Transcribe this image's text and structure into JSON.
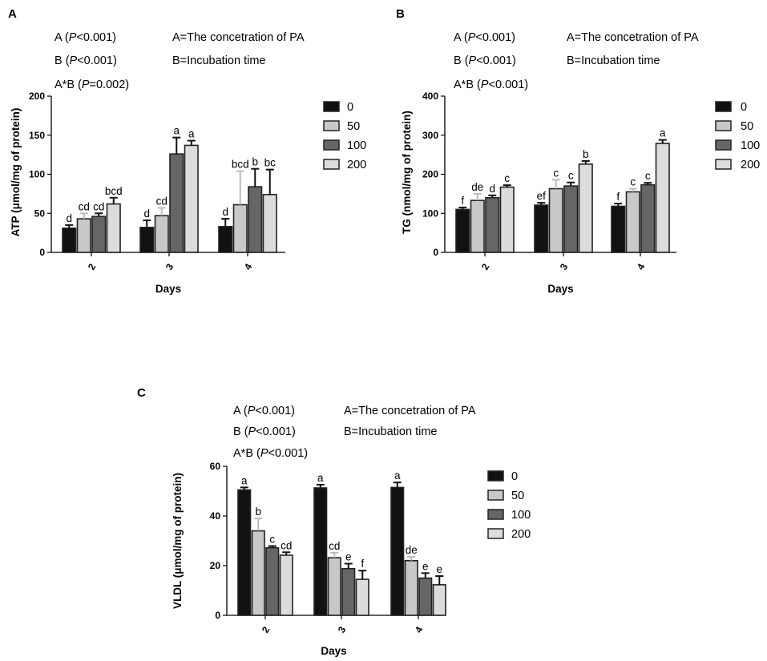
{
  "chart_data": [
    {
      "panel": "A",
      "type": "bar",
      "stats": [
        "A (P<0.001)",
        "B (P<0.001)",
        "A*B (P=0.002)"
      ],
      "definitions": [
        "A=The concetration of PA",
        "B=Incubation time"
      ],
      "xlabel": "Days",
      "ylabel": "ATP (μmol/mg of protein)",
      "ylim": [
        0,
        200
      ],
      "yticks": [
        0,
        50,
        100,
        150,
        200
      ],
      "categories": [
        "2",
        "3",
        "4"
      ],
      "series": [
        {
          "name": "0",
          "values": [
            31,
            32,
            33
          ],
          "errors": [
            4,
            9,
            10
          ],
          "labels": [
            "d",
            "d",
            "d"
          ]
        },
        {
          "name": "50",
          "values": [
            43,
            47,
            61
          ],
          "errors": [
            7,
            10,
            43
          ],
          "labels": [
            "cd",
            "cd",
            "bcd"
          ]
        },
        {
          "name": "100",
          "values": [
            46,
            126,
            84
          ],
          "errors": [
            4,
            21,
            23
          ],
          "labels": [
            "cd",
            "a",
            "b"
          ]
        },
        {
          "name": "200",
          "values": [
            62,
            137,
            74
          ],
          "errors": [
            8,
            6,
            32
          ],
          "labels": [
            "bcd",
            "a",
            "bc"
          ]
        }
      ],
      "legend": [
        "0",
        "50",
        "100",
        "200"
      ]
    },
    {
      "panel": "B",
      "type": "bar",
      "stats": [
        "A (P<0.001)",
        "B (P<0.001)",
        "A*B (P<0.001)"
      ],
      "definitions": [
        "A=The concetration of PA",
        "B=Incubation time"
      ],
      "xlabel": "Days",
      "ylabel": "TG (nmol/mg of protein)",
      "ylim": [
        0,
        400
      ],
      "yticks": [
        0,
        100,
        200,
        300,
        400
      ],
      "categories": [
        "2",
        "3",
        "4"
      ],
      "series": [
        {
          "name": "0",
          "values": [
            110,
            121,
            118
          ],
          "errors": [
            5,
            6,
            7
          ],
          "labels": [
            "f",
            "ef",
            "f"
          ]
        },
        {
          "name": "50",
          "values": [
            133,
            163,
            155
          ],
          "errors": [
            17,
            23,
            8
          ],
          "labels": [
            "de",
            "c",
            "c"
          ]
        },
        {
          "name": "100",
          "values": [
            140,
            170,
            173
          ],
          "errors": [
            6,
            9,
            5
          ],
          "labels": [
            "d",
            "c",
            "c"
          ]
        },
        {
          "name": "200",
          "values": [
            167,
            226,
            279
          ],
          "errors": [
            5,
            8,
            9
          ],
          "labels": [
            "c",
            "b",
            "a"
          ]
        }
      ],
      "legend": [
        "0",
        "50",
        "100",
        "200"
      ]
    },
    {
      "panel": "C",
      "type": "bar",
      "stats": [
        "A (P<0.001)",
        "B (P<0.001)",
        "A*B (P<0.001)"
      ],
      "definitions": [
        "A=The concetration of PA",
        "B=Incubation time"
      ],
      "xlabel": "Days",
      "ylabel": "VLDL (μmol/mg of protein)",
      "ylim": [
        0,
        60
      ],
      "yticks": [
        0,
        20,
        40,
        60
      ],
      "categories": [
        "2",
        "3",
        "4"
      ],
      "series": [
        {
          "name": "0",
          "values": [
            50.5,
            51.3,
            51.5
          ],
          "errors": [
            1,
            1.3,
            2
          ],
          "labels": [
            "a",
            "a",
            "a"
          ]
        },
        {
          "name": "50",
          "values": [
            34.0,
            23.2,
            22.0
          ],
          "errors": [
            5,
            2,
            1.5
          ],
          "labels": [
            "b",
            "cd",
            "de"
          ]
        },
        {
          "name": "100",
          "values": [
            27.2,
            18.8,
            15.0
          ],
          "errors": [
            0.7,
            2,
            2
          ],
          "labels": [
            "c",
            "e",
            "e"
          ]
        },
        {
          "name": "200",
          "values": [
            24.2,
            14.5,
            12.3
          ],
          "errors": [
            1.2,
            3.5,
            3.5
          ],
          "labels": [
            "cd",
            "f",
            "e"
          ]
        }
      ],
      "legend": [
        "0",
        "50",
        "100",
        "200"
      ]
    }
  ],
  "colors": {
    "0": "#111111",
    "50": "#c8c8c8",
    "100": "#666666",
    "200": "#dcdcdc",
    "axis": "#000000"
  }
}
